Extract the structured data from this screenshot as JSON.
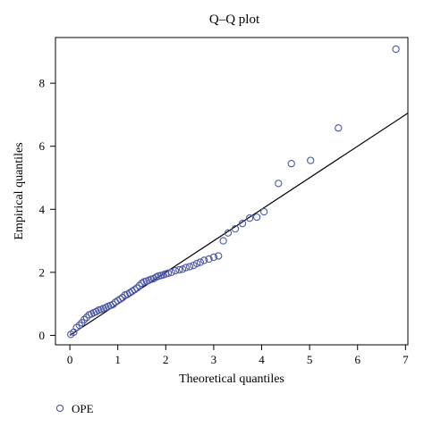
{
  "chart_data": {
    "type": "scatter",
    "title": "Q–Q plot",
    "xlabel": "Theoretical quantiles",
    "ylabel": "Empirical quantiles",
    "xlim": [
      -0.3,
      7.05
    ],
    "ylim": [
      -0.3,
      9.45
    ],
    "x_ticks": [
      0,
      1,
      2,
      3,
      4,
      5,
      6,
      7
    ],
    "y_ticks": [
      0,
      2,
      4,
      6,
      8
    ],
    "x_tick_labels": [
      "0",
      "1",
      "2",
      "3",
      "4",
      "5",
      "6",
      "7"
    ],
    "y_tick_labels": [
      "0",
      "2",
      "4",
      "6",
      "8"
    ],
    "grid": false,
    "legend_position": "bottom-left",
    "point_color": "#4a55a8",
    "line_color": "#000000",
    "reference_line": {
      "x": [
        0,
        7.05
      ],
      "y": [
        0,
        7.05
      ]
    },
    "series": [
      {
        "name": "OPE",
        "marker": "open-circle",
        "x": [
          0.02,
          0.08,
          0.14,
          0.2,
          0.25,
          0.3,
          0.35,
          0.4,
          0.45,
          0.5,
          0.55,
          0.6,
          0.65,
          0.7,
          0.75,
          0.8,
          0.85,
          0.9,
          0.95,
          1.0,
          1.05,
          1.1,
          1.15,
          1.2,
          1.25,
          1.3,
          1.35,
          1.4,
          1.45,
          1.5,
          1.55,
          1.6,
          1.65,
          1.7,
          1.75,
          1.8,
          1.85,
          1.9,
          1.95,
          2.0,
          2.05,
          2.12,
          2.2,
          2.28,
          2.35,
          2.42,
          2.5,
          2.58,
          2.65,
          2.72,
          2.8,
          2.9,
          3.0,
          3.1,
          3.2,
          3.3,
          3.45,
          3.6,
          3.75,
          3.9,
          4.05,
          4.35,
          4.62,
          5.02,
          5.6,
          6.8
        ],
        "y": [
          0.03,
          0.1,
          0.25,
          0.32,
          0.4,
          0.5,
          0.57,
          0.65,
          0.68,
          0.72,
          0.75,
          0.8,
          0.82,
          0.85,
          0.88,
          0.92,
          0.95,
          0.98,
          1.05,
          1.1,
          1.15,
          1.2,
          1.28,
          1.3,
          1.35,
          1.4,
          1.45,
          1.5,
          1.58,
          1.65,
          1.7,
          1.72,
          1.75,
          1.78,
          1.8,
          1.85,
          1.88,
          1.9,
          1.92,
          1.95,
          1.97,
          2.0,
          2.05,
          2.08,
          2.1,
          2.15,
          2.18,
          2.22,
          2.28,
          2.32,
          2.38,
          2.42,
          2.48,
          2.52,
          3.0,
          3.25,
          3.38,
          3.55,
          3.72,
          3.75,
          3.92,
          4.82,
          5.45,
          5.55,
          6.58,
          9.08
        ]
      }
    ]
  }
}
